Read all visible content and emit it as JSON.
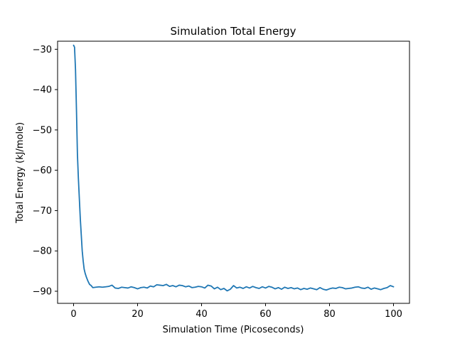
{
  "chart_data": {
    "type": "line",
    "title": "Simulation Total Energy",
    "xlabel": "Simulation Time (Picoseconds)",
    "ylabel": "Total Energy (kJ/mole)",
    "xlim": [
      -5,
      105
    ],
    "ylim": [
      -93,
      -28
    ],
    "x_ticks": [
      0,
      20,
      40,
      60,
      80,
      100
    ],
    "y_ticks": [
      -90,
      -80,
      -70,
      -60,
      -50,
      -40,
      -30
    ],
    "x_tick_labels": [
      "0",
      "20",
      "40",
      "60",
      "80",
      "100"
    ],
    "y_tick_labels": [
      "−90",
      "−80",
      "−70",
      "−60",
      "−50",
      "−40",
      "−30"
    ],
    "grid": false,
    "series": [
      {
        "color": "#1f77b4",
        "x": [
          0,
          0.3,
          0.6,
          0.9,
          1.2,
          1.5,
          1.8,
          2.1,
          2.4,
          2.7,
          3.0,
          3.3,
          3.6,
          4.0,
          4.5,
          5.0,
          5.5,
          6,
          7,
          8,
          9,
          10,
          11,
          12,
          13,
          14,
          15,
          16,
          17,
          18,
          19,
          20,
          21,
          22,
          23,
          24,
          25,
          26,
          27,
          28,
          29,
          30,
          31,
          32,
          33,
          34,
          35,
          36,
          37,
          38,
          39,
          40,
          41,
          42,
          43,
          44,
          45,
          46,
          47,
          48,
          49,
          50,
          51,
          52,
          53,
          54,
          55,
          56,
          57,
          58,
          59,
          60,
          61,
          62,
          63,
          64,
          65,
          66,
          67,
          68,
          69,
          70,
          71,
          72,
          73,
          74,
          75,
          76,
          77,
          78,
          79,
          80,
          81,
          82,
          83,
          84,
          85,
          86,
          87,
          88,
          89,
          90,
          91,
          92,
          93,
          94,
          95,
          96,
          97,
          98,
          99,
          100
        ],
        "y": [
          -29,
          -29.5,
          -35,
          -45,
          -56,
          -62,
          -67,
          -72,
          -76,
          -80,
          -82.5,
          -84.5,
          -85.5,
          -86.5,
          -87.5,
          -88.3,
          -88.6,
          -89.1,
          -89.0,
          -88.9,
          -89.0,
          -88.9,
          -88.8,
          -88.5,
          -89.2,
          -89.3,
          -89.0,
          -89.1,
          -89.2,
          -88.9,
          -89.1,
          -89.4,
          -89.1,
          -89.0,
          -89.2,
          -88.7,
          -88.9,
          -88.4,
          -88.5,
          -88.6,
          -88.3,
          -88.8,
          -88.6,
          -88.9,
          -88.5,
          -88.6,
          -88.9,
          -88.7,
          -89.1,
          -89.0,
          -88.8,
          -88.9,
          -89.2,
          -88.5,
          -88.7,
          -89.4,
          -89.0,
          -89.6,
          -89.3,
          -89.9,
          -89.5,
          -88.6,
          -89.2,
          -89.0,
          -89.3,
          -88.9,
          -89.2,
          -88.8,
          -89.1,
          -89.3,
          -88.9,
          -89.2,
          -88.8,
          -89.0,
          -89.4,
          -89.1,
          -89.5,
          -89.0,
          -89.3,
          -89.1,
          -89.4,
          -89.2,
          -89.6,
          -89.3,
          -89.5,
          -89.2,
          -89.4,
          -89.6,
          -89.1,
          -89.5,
          -89.7,
          -89.4,
          -89.2,
          -89.3,
          -89.0,
          -89.1,
          -89.4,
          -89.3,
          -89.2,
          -89.0,
          -88.9,
          -89.2,
          -89.3,
          -89.0,
          -89.5,
          -89.2,
          -89.4,
          -89.6,
          -89.3,
          -89.1,
          -88.6,
          -88.9
        ]
      }
    ]
  }
}
